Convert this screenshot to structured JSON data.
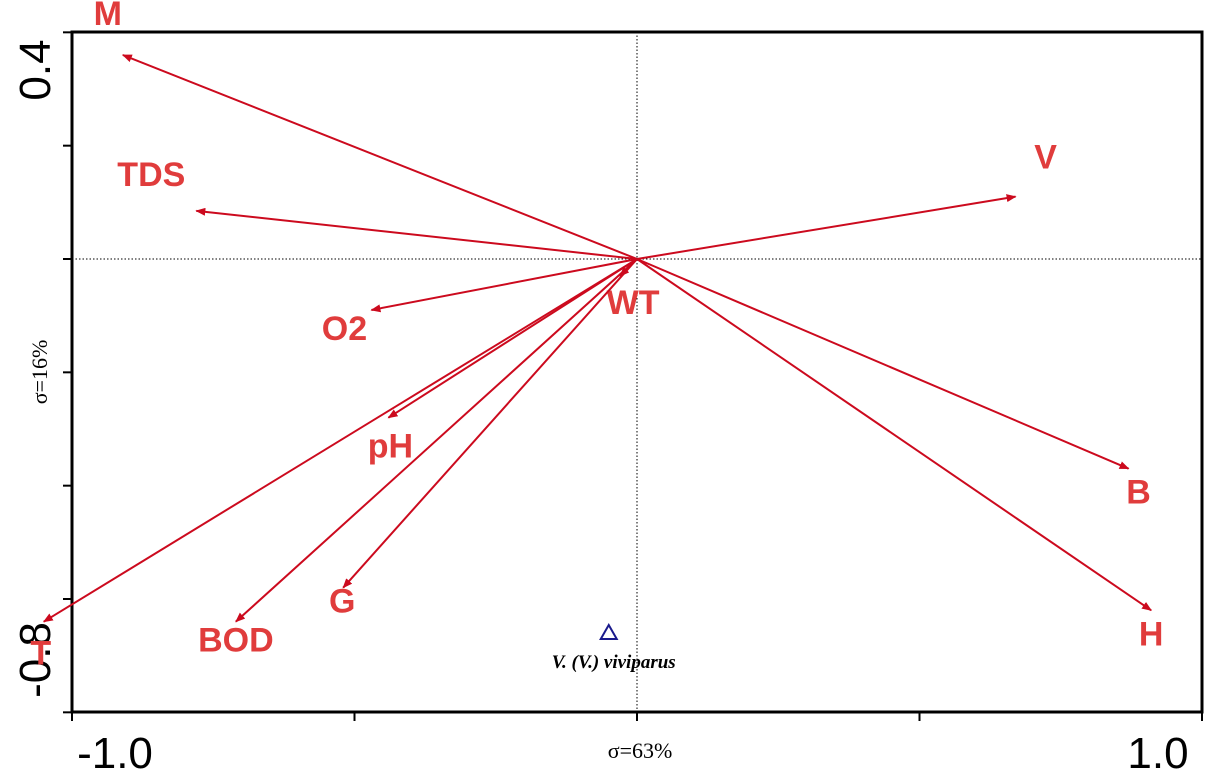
{
  "chart_data": {
    "type": "biplot",
    "xlabel": "σ=63%",
    "ylabel": "σ=16%",
    "xlim": [
      -1.0,
      1.0
    ],
    "ylim": [
      -0.8,
      0.4
    ],
    "x_tick_labels": [
      "-1.0",
      "1.0"
    ],
    "y_tick_labels": [
      "0.4",
      "-0.8"
    ],
    "grid": false,
    "reference_lines": "dotted lines at x=0 and y=0",
    "colors": {
      "vectors": "#cc0a1e",
      "labels": "#e03c3c",
      "species": "#1a1a8c",
      "axes": "#000000"
    },
    "vectors": [
      {
        "name": "M",
        "x": -0.91,
        "y": 0.36
      },
      {
        "name": "TDS",
        "x": -0.78,
        "y": 0.085
      },
      {
        "name": "V",
        "x": 0.67,
        "y": 0.11
      },
      {
        "name": "O2",
        "x": -0.47,
        "y": -0.09
      },
      {
        "name": "WT",
        "x": -0.03,
        "y": -0.03
      },
      {
        "name": "pH",
        "x": -0.44,
        "y": -0.28
      },
      {
        "name": "B",
        "x": 0.87,
        "y": -0.37
      },
      {
        "name": "H",
        "x": 0.91,
        "y": -0.62
      },
      {
        "name": "G",
        "x": -0.52,
        "y": -0.58
      },
      {
        "name": "BOD",
        "x": -0.71,
        "y": -0.64
      },
      {
        "name": "T",
        "x": -1.05,
        "y": -0.64
      }
    ],
    "species": [
      {
        "name": "V. (V.) viviparus",
        "x": -0.05,
        "y": -0.66
      }
    ]
  }
}
